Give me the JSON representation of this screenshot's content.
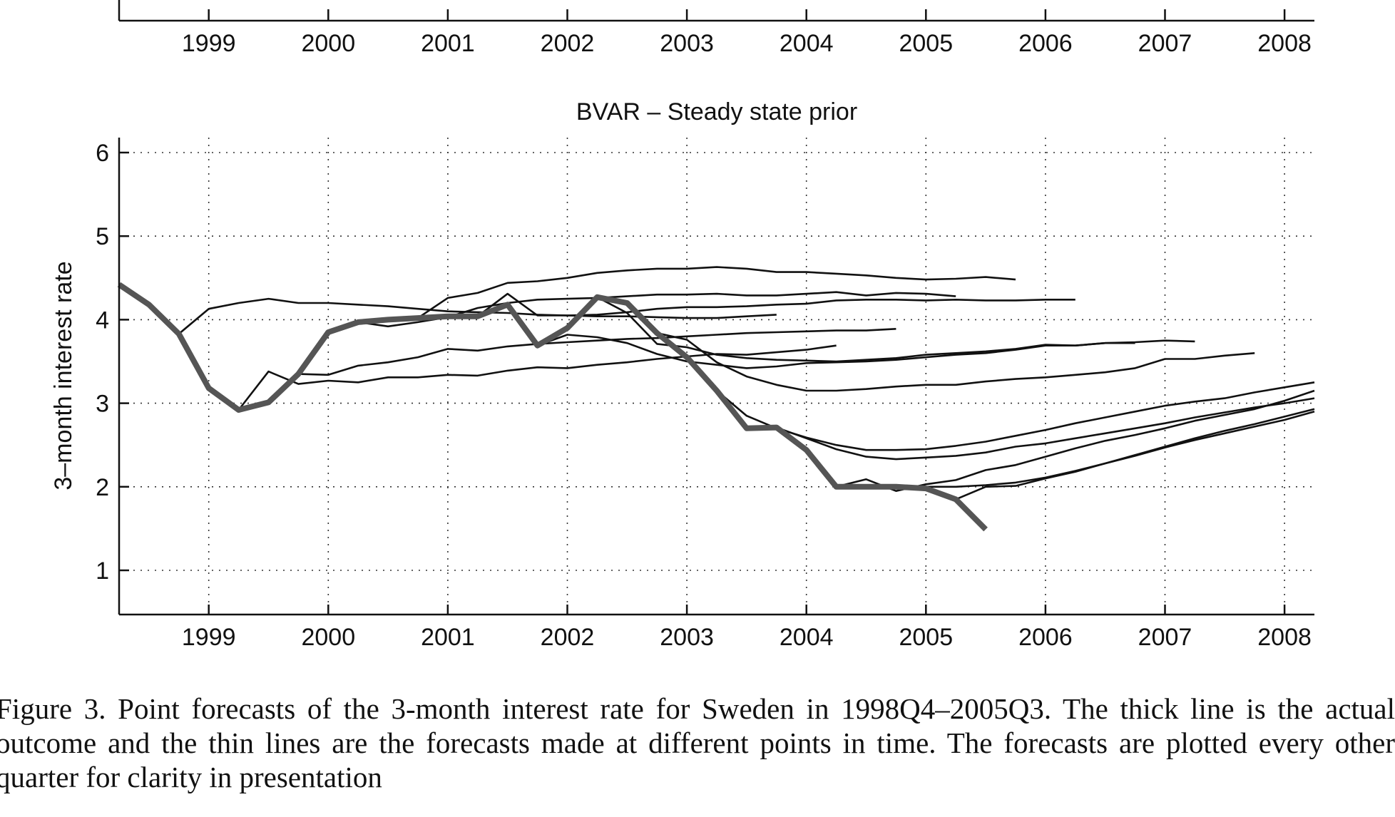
{
  "top_panel": {
    "x_ticks": [
      "1999",
      "2000",
      "2001",
      "2002",
      "2003",
      "2004",
      "2005",
      "2006",
      "2007",
      "2008"
    ]
  },
  "chart_data": {
    "type": "line",
    "title": "BVAR – Steady state prior",
    "xlabel": "",
    "ylabel": "3–month interest rate",
    "xlim": [
      1998.25,
      2008.25
    ],
    "ylim": [
      0.5,
      6.2
    ],
    "x_ticks": [
      1999,
      2000,
      2001,
      2002,
      2003,
      2004,
      2005,
      2006,
      2007,
      2008
    ],
    "y_ticks": [
      1,
      2,
      3,
      4,
      5,
      6
    ],
    "grid": true,
    "legend": "none",
    "colors": {
      "actual": "#555555",
      "forecast": "#111111"
    },
    "series": [
      {
        "role": "actual",
        "x": [
          1998.25,
          1998.5,
          1998.75,
          1999.0,
          1999.25,
          1999.5,
          1999.75,
          2000.0,
          2000.25,
          2000.5,
          2000.75,
          2001.0,
          2001.25,
          2001.5,
          2001.75,
          2002.0,
          2002.25,
          2002.5,
          2002.75,
          2003.0,
          2003.25,
          2003.5,
          2003.75,
          2004.0,
          2004.25,
          2004.5,
          2004.75,
          2005.0,
          2005.25,
          2005.5
        ],
        "y": [
          4.42,
          4.18,
          3.83,
          3.18,
          2.92,
          3.01,
          3.35,
          3.85,
          3.97,
          4.0,
          4.02,
          4.04,
          4.04,
          4.18,
          3.69,
          3.9,
          4.27,
          4.2,
          3.84,
          3.55,
          3.15,
          2.7,
          2.71,
          2.44,
          2.0,
          2.0,
          2.0,
          1.98,
          1.85,
          1.49
        ]
      },
      {
        "role": "forecast",
        "x": [
          1998.75,
          1999.0,
          1999.25,
          1999.5,
          1999.75,
          2000.0,
          2000.25,
          2000.5,
          2000.75,
          2001.0,
          2001.25,
          2001.5,
          2001.75,
          2002.0,
          2002.25,
          2002.5,
          2002.75,
          2003.0,
          2003.25,
          2003.5,
          2003.75
        ],
        "y": [
          3.83,
          4.13,
          4.2,
          4.25,
          4.2,
          4.2,
          4.18,
          4.16,
          4.13,
          4.1,
          4.09,
          4.08,
          4.06,
          4.05,
          4.04,
          4.04,
          4.03,
          4.02,
          4.02,
          4.04,
          4.06
        ]
      },
      {
        "role": "forecast",
        "x": [
          1999.25,
          1999.5,
          1999.75,
          2000.0,
          2000.25,
          2000.5,
          2000.75,
          2001.0,
          2001.25,
          2001.5,
          2001.75,
          2002.0,
          2002.25,
          2002.5,
          2002.75,
          2003.0,
          2003.25,
          2003.5,
          2003.75,
          2004.0,
          2004.25
        ],
        "y": [
          2.92,
          3.38,
          3.23,
          3.27,
          3.25,
          3.31,
          3.31,
          3.34,
          3.33,
          3.39,
          3.43,
          3.42,
          3.46,
          3.49,
          3.53,
          3.56,
          3.59,
          3.58,
          3.61,
          3.64,
          3.69
        ]
      },
      {
        "role": "forecast",
        "x": [
          1999.75,
          2000.0,
          2000.25,
          2000.5,
          2000.75,
          2001.0,
          2001.25,
          2001.5,
          2001.75,
          2002.0,
          2002.25,
          2002.5,
          2002.75,
          2003.0,
          2003.25,
          2003.5,
          2003.75,
          2004.0,
          2004.25,
          2004.5,
          2004.75
        ],
        "y": [
          3.35,
          3.34,
          3.45,
          3.49,
          3.55,
          3.65,
          3.63,
          3.68,
          3.71,
          3.73,
          3.75,
          3.77,
          3.78,
          3.8,
          3.82,
          3.84,
          3.85,
          3.86,
          3.87,
          3.87,
          3.89
        ]
      },
      {
        "role": "forecast",
        "x": [
          2000.25,
          2000.5,
          2000.75,
          2001.0,
          2001.25,
          2001.5,
          2001.75,
          2002.0,
          2002.25,
          2002.5,
          2002.75,
          2003.0,
          2003.25,
          2003.5,
          2003.75,
          2004.0,
          2004.25,
          2004.5,
          2004.75,
          2005.0,
          2005.25
        ],
        "y": [
          3.97,
          3.92,
          3.97,
          4.03,
          4.14,
          4.2,
          4.24,
          4.25,
          4.26,
          4.28,
          4.3,
          4.3,
          4.31,
          4.29,
          4.29,
          4.31,
          4.33,
          4.29,
          4.32,
          4.31,
          4.28
        ]
      },
      {
        "role": "forecast",
        "x": [
          2000.75,
          2001.0,
          2001.25,
          2001.5,
          2001.75,
          2002.0,
          2002.25,
          2002.5,
          2002.75,
          2003.0,
          2003.25,
          2003.5,
          2003.75,
          2004.0,
          2004.25,
          2004.5,
          2004.75,
          2005.0,
          2005.25,
          2005.5,
          2005.75
        ],
        "y": [
          4.02,
          4.26,
          4.32,
          4.44,
          4.46,
          4.5,
          4.56,
          4.59,
          4.61,
          4.61,
          4.63,
          4.61,
          4.57,
          4.57,
          4.55,
          4.53,
          4.5,
          4.48,
          4.49,
          4.51,
          4.48
        ]
      },
      {
        "role": "forecast",
        "x": [
          2001.25,
          2001.5,
          2001.75,
          2002.0,
          2002.25,
          2002.5,
          2002.75,
          2003.0,
          2003.25,
          2003.5,
          2003.75,
          2004.0,
          2004.25,
          2004.5,
          2004.75,
          2005.0,
          2005.25,
          2005.5,
          2005.75,
          2006.0,
          2006.25
        ],
        "y": [
          4.04,
          4.31,
          4.05,
          4.05,
          4.06,
          4.09,
          4.13,
          4.15,
          4.15,
          4.16,
          4.18,
          4.19,
          4.23,
          4.24,
          4.24,
          4.23,
          4.24,
          4.23,
          4.23,
          4.24,
          4.24
        ]
      },
      {
        "role": "forecast",
        "x": [
          2001.75,
          2002.0,
          2002.25,
          2002.5,
          2002.75,
          2003.0,
          2003.25,
          2003.5,
          2003.75,
          2004.0,
          2004.25,
          2004.5,
          2004.75,
          2005.0,
          2005.25,
          2005.5,
          2005.75,
          2006.0,
          2006.25,
          2006.5,
          2006.75
        ],
        "y": [
          3.69,
          3.82,
          3.79,
          3.72,
          3.59,
          3.5,
          3.46,
          3.42,
          3.44,
          3.48,
          3.49,
          3.5,
          3.52,
          3.55,
          3.58,
          3.6,
          3.64,
          3.69,
          3.69,
          3.72,
          3.72
        ]
      },
      {
        "role": "forecast",
        "x": [
          2002.25,
          2002.5,
          2002.75,
          2003.0,
          2003.25,
          2003.5,
          2003.75,
          2004.0,
          2004.25,
          2004.5,
          2004.75,
          2005.0,
          2005.25,
          2005.5,
          2005.75,
          2006.0,
          2006.25,
          2006.5,
          2006.75,
          2007.0,
          2007.25
        ],
        "y": [
          4.27,
          4.08,
          3.71,
          3.67,
          3.58,
          3.54,
          3.52,
          3.51,
          3.5,
          3.52,
          3.54,
          3.58,
          3.6,
          3.62,
          3.65,
          3.7,
          3.69,
          3.72,
          3.73,
          3.75,
          3.74
        ]
      },
      {
        "role": "forecast",
        "x": [
          2002.75,
          2003.0,
          2003.25,
          2003.5,
          2003.75,
          2004.0,
          2004.25,
          2004.5,
          2004.75,
          2005.0,
          2005.25,
          2005.5,
          2005.75,
          2006.0,
          2006.25,
          2006.5,
          2006.75,
          2007.0,
          2007.25,
          2007.5,
          2007.75
        ],
        "y": [
          3.84,
          3.76,
          3.49,
          3.32,
          3.22,
          3.15,
          3.15,
          3.17,
          3.2,
          3.22,
          3.22,
          3.26,
          3.29,
          3.31,
          3.34,
          3.37,
          3.42,
          3.53,
          3.53,
          3.57,
          3.6
        ]
      },
      {
        "role": "forecast",
        "x": [
          2003.25,
          2003.5,
          2003.75,
          2004.0,
          2004.25,
          2004.5,
          2004.75,
          2005.0,
          2005.25,
          2005.5,
          2005.75,
          2006.0,
          2006.25,
          2006.5,
          2006.75,
          2007.0,
          2007.25,
          2007.5,
          2007.75,
          2008.0,
          2008.25
        ],
        "y": [
          3.15,
          2.85,
          2.7,
          2.59,
          2.5,
          2.44,
          2.44,
          2.45,
          2.49,
          2.54,
          2.61,
          2.68,
          2.76,
          2.83,
          2.9,
          2.97,
          3.02,
          3.06,
          3.13,
          3.19,
          3.25
        ]
      },
      {
        "role": "forecast",
        "x": [
          2003.75,
          2004.0,
          2004.25,
          2004.5,
          2004.75,
          2005.0,
          2005.25,
          2005.5,
          2005.75,
          2006.0,
          2006.25,
          2006.5,
          2006.75,
          2007.0,
          2007.25,
          2007.5,
          2007.75,
          2008.0,
          2008.25
        ],
        "y": [
          2.71,
          2.58,
          2.45,
          2.36,
          2.33,
          2.35,
          2.37,
          2.41,
          2.48,
          2.52,
          2.58,
          2.64,
          2.7,
          2.76,
          2.83,
          2.89,
          2.95,
          3.0,
          3.06
        ]
      },
      {
        "role": "forecast",
        "x": [
          2004.25,
          2004.5,
          2004.75,
          2005.0,
          2005.25,
          2005.5,
          2005.75,
          2006.0,
          2006.25,
          2006.5,
          2006.75,
          2007.0,
          2007.25,
          2007.5,
          2007.75,
          2008.0,
          2008.25
        ],
        "y": [
          2.0,
          2.09,
          1.95,
          2.03,
          2.08,
          2.2,
          2.26,
          2.36,
          2.46,
          2.55,
          2.62,
          2.7,
          2.79,
          2.86,
          2.93,
          3.03,
          3.15
        ]
      },
      {
        "role": "forecast",
        "x": [
          2004.75,
          2005.0,
          2005.25,
          2005.5,
          2005.75,
          2006.0,
          2006.25,
          2006.5,
          2006.75,
          2007.0,
          2007.25,
          2007.5,
          2007.75,
          2008.0,
          2008.25
        ],
        "y": [
          2.0,
          2.0,
          2.0,
          2.02,
          2.05,
          2.11,
          2.19,
          2.28,
          2.37,
          2.47,
          2.56,
          2.64,
          2.72,
          2.8,
          2.9
        ]
      },
      {
        "role": "forecast",
        "x": [
          2005.25,
          2005.5,
          2005.75,
          2006.0,
          2006.25,
          2006.5,
          2006.75,
          2007.0,
          2007.25,
          2007.5,
          2007.75,
          2008.0,
          2008.25
        ],
        "y": [
          1.85,
          2.0,
          2.01,
          2.1,
          2.18,
          2.28,
          2.38,
          2.48,
          2.58,
          2.67,
          2.75,
          2.84,
          2.93
        ]
      }
    ]
  },
  "caption": "Figure 3. Point forecasts of the 3-month interest rate for Sweden in 1998Q4–2005Q3. The thick line is the actual outcome and the thin lines are the forecasts made at different points in time. The forecasts are plotted every other quarter for clarity in presentation"
}
